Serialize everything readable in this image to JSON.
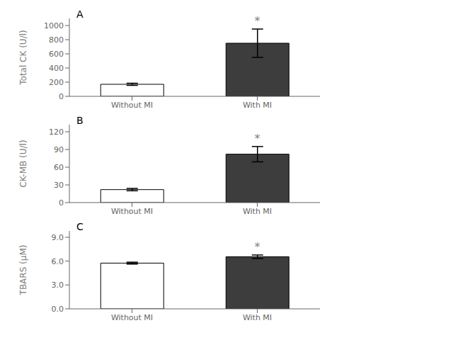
{
  "chart_data": [
    {
      "type": "bar",
      "title": "A",
      "categories": [
        "Without MI",
        "With MI"
      ],
      "values": [
        170,
        750
      ],
      "errors": [
        15,
        200
      ],
      "colors": [
        "#ffffff",
        "#3d3d3d"
      ],
      "ylabel": "Total CK (U/l)",
      "ylim": [
        0,
        1100
      ],
      "yticks": [
        0,
        200,
        400,
        600,
        800,
        1000
      ],
      "grid": false,
      "annotations": [
        {
          "text": "*",
          "x": "With MI"
        }
      ]
    },
    {
      "type": "bar",
      "title": "B",
      "categories": [
        "Without MI",
        "With MI"
      ],
      "values": [
        22,
        82
      ],
      "errors": [
        2,
        13
      ],
      "colors": [
        "#ffffff",
        "#3d3d3d"
      ],
      "ylabel": "CK-MB (U/l)",
      "ylim": [
        0,
        132
      ],
      "yticks": [
        0,
        30,
        60,
        90,
        120
      ],
      "grid": false,
      "annotations": [
        {
          "text": "*",
          "x": "With MI"
        }
      ]
    },
    {
      "type": "bar",
      "title": "C",
      "categories": [
        "Without MI",
        "With MI"
      ],
      "values": [
        5.75,
        6.55
      ],
      "errors": [
        0.12,
        0.22
      ],
      "colors": [
        "#ffffff",
        "#3d3d3d"
      ],
      "ylabel": "TBARS (μM)",
      "ylim": [
        0,
        9.8
      ],
      "yticks": [
        {
          "value": 0.0,
          "label": "0.0"
        },
        {
          "value": 3.0,
          "label": "3.0"
        },
        {
          "value": 6.0,
          "label": "6.0"
        },
        {
          "value": 9.0,
          "label": "9.0"
        }
      ],
      "grid": false,
      "annotations": [
        {
          "text": "*",
          "x": "With MI"
        }
      ]
    }
  ]
}
